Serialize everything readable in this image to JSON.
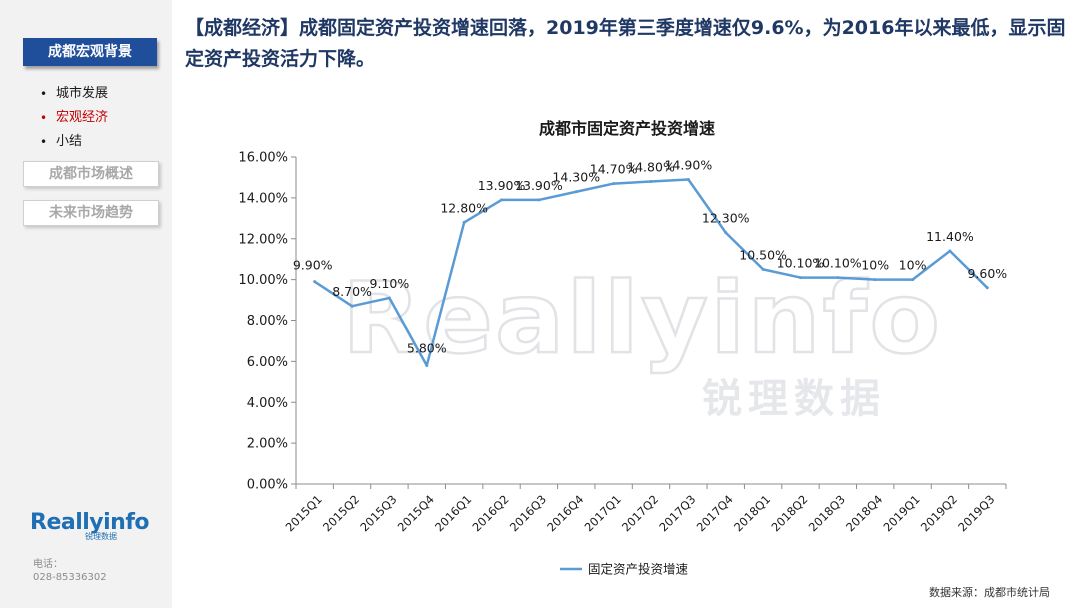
{
  "sidebar": {
    "active_section": "成都宏观背景",
    "subitems": [
      {
        "bullet": "•",
        "label": "城市发展",
        "current": false
      },
      {
        "bullet": "•",
        "label": "宏观经济",
        "current": true
      },
      {
        "bullet": "•",
        "label": "小结",
        "current": false
      }
    ],
    "sections": [
      "成都市场概述",
      "未来市场趋势"
    ],
    "logo_text": "Reallyinfo",
    "logo_sub": "锐理数据",
    "contact_label": "电话：",
    "contact_phone": "028-85336302"
  },
  "headline": "【成都经济】成都固定资产投资增速回落，2019年第三季度增速仅9.6%，为2016年以来最低，显示固定资产投资活力下降。",
  "watermark": {
    "text": "Reallyinfo",
    "subtext": "锐理数据"
  },
  "source": "数据来源：成都市统计局",
  "chart_data": {
    "type": "line",
    "title": "成都市固定资产投资增速",
    "categories": [
      "2015Q1",
      "2015Q2",
      "2015Q3",
      "2015Q4",
      "2016Q1",
      "2016Q2",
      "2016Q3",
      "2016Q4",
      "2017Q1",
      "2017Q2",
      "2017Q3",
      "2017Q4",
      "2018Q1",
      "2018Q2",
      "2018Q3",
      "2018Q4",
      "2019Q1",
      "2019Q2",
      "2019Q3"
    ],
    "series": [
      {
        "name": "固定资产投资增速",
        "values": [
          9.9,
          8.7,
          9.1,
          5.8,
          12.8,
          13.9,
          13.9,
          14.3,
          14.7,
          14.8,
          14.9,
          12.3,
          10.5,
          10.1,
          10.1,
          10.0,
          10.0,
          11.4,
          9.6
        ],
        "labels": [
          "9.90%",
          "8.70%",
          "9.10%",
          "5.80%",
          "12.80%",
          "13.90%",
          "13.90%",
          "14.30%",
          "14.70%",
          "14.80%",
          "14.90%",
          "12.30%",
          "10.50%",
          "10.10%",
          "10.10%",
          "10%",
          "10%",
          "11.40%",
          "9.60%"
        ],
        "color": "#5b9bd5"
      }
    ],
    "yticks": [
      "0.00%",
      "2.00%",
      "4.00%",
      "6.00%",
      "8.00%",
      "10.00%",
      "12.00%",
      "14.00%",
      "16.00%"
    ],
    "ylim": [
      0,
      16
    ],
    "grid": false,
    "legend": "bottom"
  }
}
